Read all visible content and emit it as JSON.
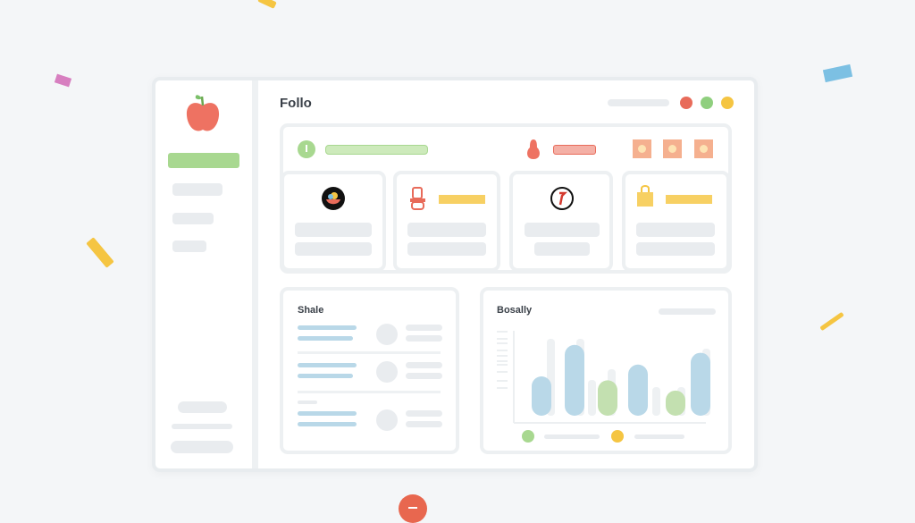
{
  "colors": {
    "accent_green": "#a8d890",
    "accent_red": "#e86b5a",
    "accent_yellow": "#f5c542",
    "accent_blue": "#b9d8e8",
    "accent_orange": "#f5b08f"
  },
  "header": {
    "title": "Follo",
    "status_dots": [
      "red",
      "green",
      "yellow"
    ]
  },
  "sidebar": {
    "logo_icon": "apple-icon",
    "active_item": 0
  },
  "top_row": {
    "icons": [
      "thermometer-icon",
      "pear-icon",
      "square-badge-icon",
      "square-badge-icon",
      "square-badge-icon"
    ]
  },
  "cards": [
    {
      "icon": "fruit-bowl-icon"
    },
    {
      "icon": "jar-icon"
    },
    {
      "icon": "pen-icon"
    },
    {
      "icon": "shopping-bag-icon"
    }
  ],
  "list_panel": {
    "title": "Shale"
  },
  "chart_panel": {
    "title": "Bosally"
  },
  "chart_data": {
    "type": "bar",
    "series": [
      {
        "color": "#b9d8e8",
        "values": [
          50,
          90,
          0,
          65,
          0,
          80
        ]
      },
      {
        "color": "#c3e0b0",
        "values": [
          0,
          0,
          45,
          0,
          32,
          0
        ]
      }
    ],
    "legend": {
      "placement": "bottom",
      "colors": [
        "#a8d890",
        "#f5c542"
      ]
    },
    "ylim": [
      0,
      100
    ]
  }
}
